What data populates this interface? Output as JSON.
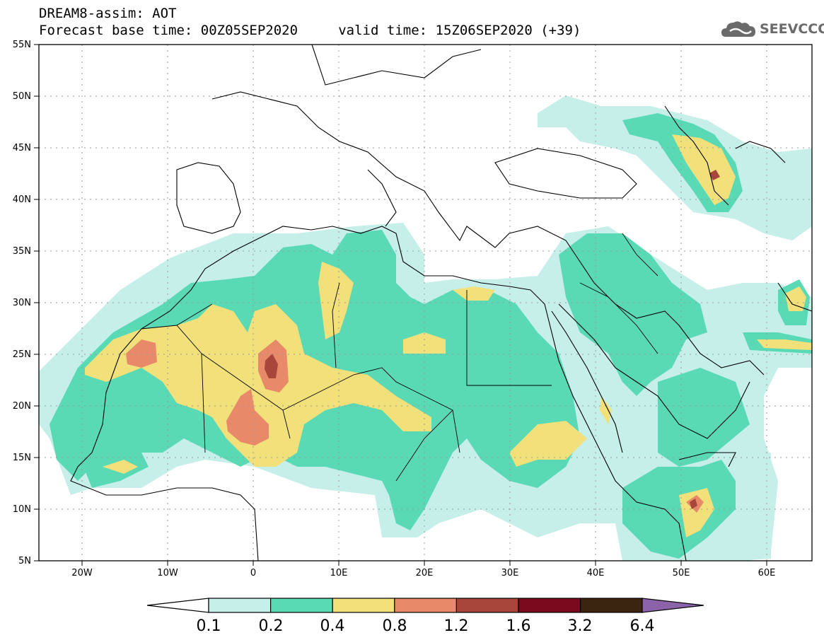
{
  "header": {
    "line1": "DREAM8-assim: AOT",
    "line2": "Forecast base time: 00Z05SEP2020     valid time: 15Z06SEP2020 (+39)",
    "logo_text": "SEEVCCC"
  },
  "map": {
    "variable": "AOT",
    "lat_range": [
      5,
      55
    ],
    "lon_range": [
      -25,
      65
    ],
    "lat_ticks": [
      "5N",
      "10N",
      "15N",
      "20N",
      "25N",
      "30N",
      "35N",
      "40N",
      "45N",
      "50N",
      "55N"
    ],
    "lon_ticks": [
      "20W",
      "10W",
      "0",
      "10E",
      "20E",
      "30E",
      "40E",
      "50E",
      "60E"
    ],
    "grid": true
  },
  "legend": {
    "labels": [
      "0.1",
      "0.2",
      "0.4",
      "0.8",
      "1.2",
      "1.6",
      "3.2",
      "6.4"
    ],
    "colors": [
      "#c6efe9",
      "#5ad9b5",
      "#f2e07a",
      "#e8896a",
      "#a8463c",
      "#7b0a1f",
      "#3b2510",
      "#8c63a8"
    ]
  },
  "colors": {
    "aot_01": "#c6efe9",
    "aot_02": "#5ad9b5",
    "aot_04": "#f2e07a",
    "aot_08": "#e8896a",
    "aot_12": "#a8463c"
  }
}
